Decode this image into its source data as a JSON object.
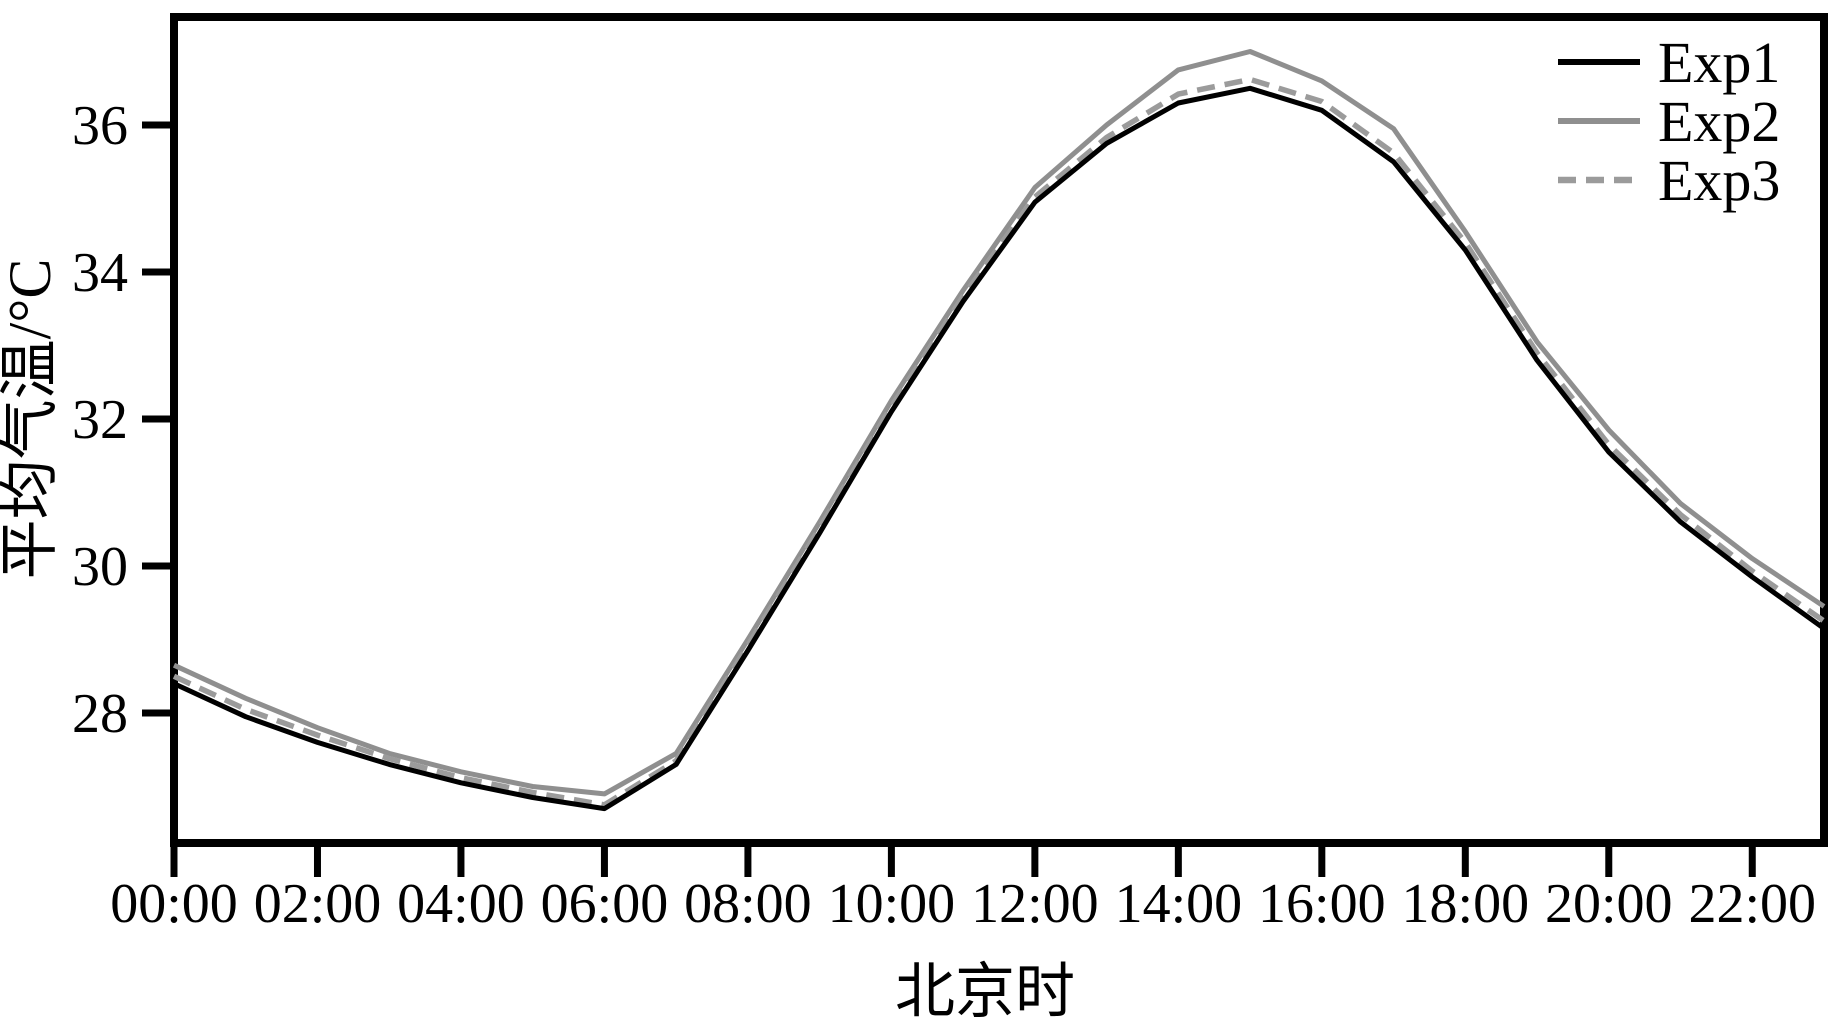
{
  "figure": {
    "background_color": "#ffffff",
    "frame_color": "#000000"
  },
  "axes": {
    "x": {
      "title": "北京时",
      "tick_hours": [
        0,
        2,
        4,
        6,
        8,
        10,
        12,
        14,
        16,
        18,
        20,
        22
      ],
      "tick_labels": [
        "00:00",
        "02:00",
        "04:00",
        "06:00",
        "08:00",
        "10:00",
        "12:00",
        "14:00",
        "16:00",
        "18:00",
        "20:00",
        "22:00"
      ]
    },
    "y": {
      "title": "平均气温/°C",
      "tick_values": [
        28,
        30,
        32,
        34,
        36
      ],
      "tick_labels": [
        "28",
        "30",
        "32",
        "34",
        "36"
      ]
    }
  },
  "chart_data": {
    "type": "line",
    "title": "",
    "xlabel": "北京时",
    "ylabel": "平均气温/°C",
    "x_hours": [
      0,
      1,
      2,
      3,
      4,
      5,
      6,
      7,
      8,
      9,
      10,
      11,
      12,
      13,
      14,
      15,
      16,
      17,
      18,
      19,
      20,
      21,
      22,
      23
    ],
    "x_tick_labels": [
      "00:00",
      "02:00",
      "04:00",
      "06:00",
      "08:00",
      "10:00",
      "12:00",
      "14:00",
      "16:00",
      "18:00",
      "20:00",
      "22:00"
    ],
    "xlim_hours": [
      0,
      23
    ],
    "ylim": [
      26.2,
      37.5
    ],
    "grid": false,
    "legend_position": "top-right",
    "series": [
      {
        "name": "Exp1",
        "color": "#000000",
        "style": "solid",
        "width": 5,
        "values": [
          28.4,
          27.95,
          27.6,
          27.3,
          27.05,
          26.85,
          26.7,
          27.3,
          28.85,
          30.45,
          32.1,
          33.6,
          34.95,
          35.75,
          36.3,
          36.5,
          36.2,
          35.5,
          34.3,
          32.8,
          31.55,
          30.6,
          29.85,
          29.15
        ]
      },
      {
        "name": "Exp2",
        "color": "#8f8f8f",
        "style": "solid",
        "width": 5,
        "values": [
          28.65,
          28.2,
          27.8,
          27.45,
          27.2,
          27.0,
          26.9,
          27.45,
          29.0,
          30.6,
          32.25,
          33.75,
          35.15,
          36.0,
          36.75,
          37.0,
          36.6,
          35.95,
          34.55,
          33.05,
          31.85,
          30.85,
          30.1,
          29.45
        ]
      },
      {
        "name": "Exp3",
        "color": "#9b9b9b",
        "style": "dashed",
        "width": 5.5,
        "values": [
          28.5,
          28.05,
          27.7,
          27.38,
          27.12,
          26.92,
          26.75,
          27.35,
          28.92,
          30.52,
          32.17,
          33.67,
          35.02,
          35.83,
          36.42,
          36.62,
          36.32,
          35.62,
          34.4,
          32.9,
          31.65,
          30.7,
          29.93,
          29.25
        ]
      }
    ]
  }
}
